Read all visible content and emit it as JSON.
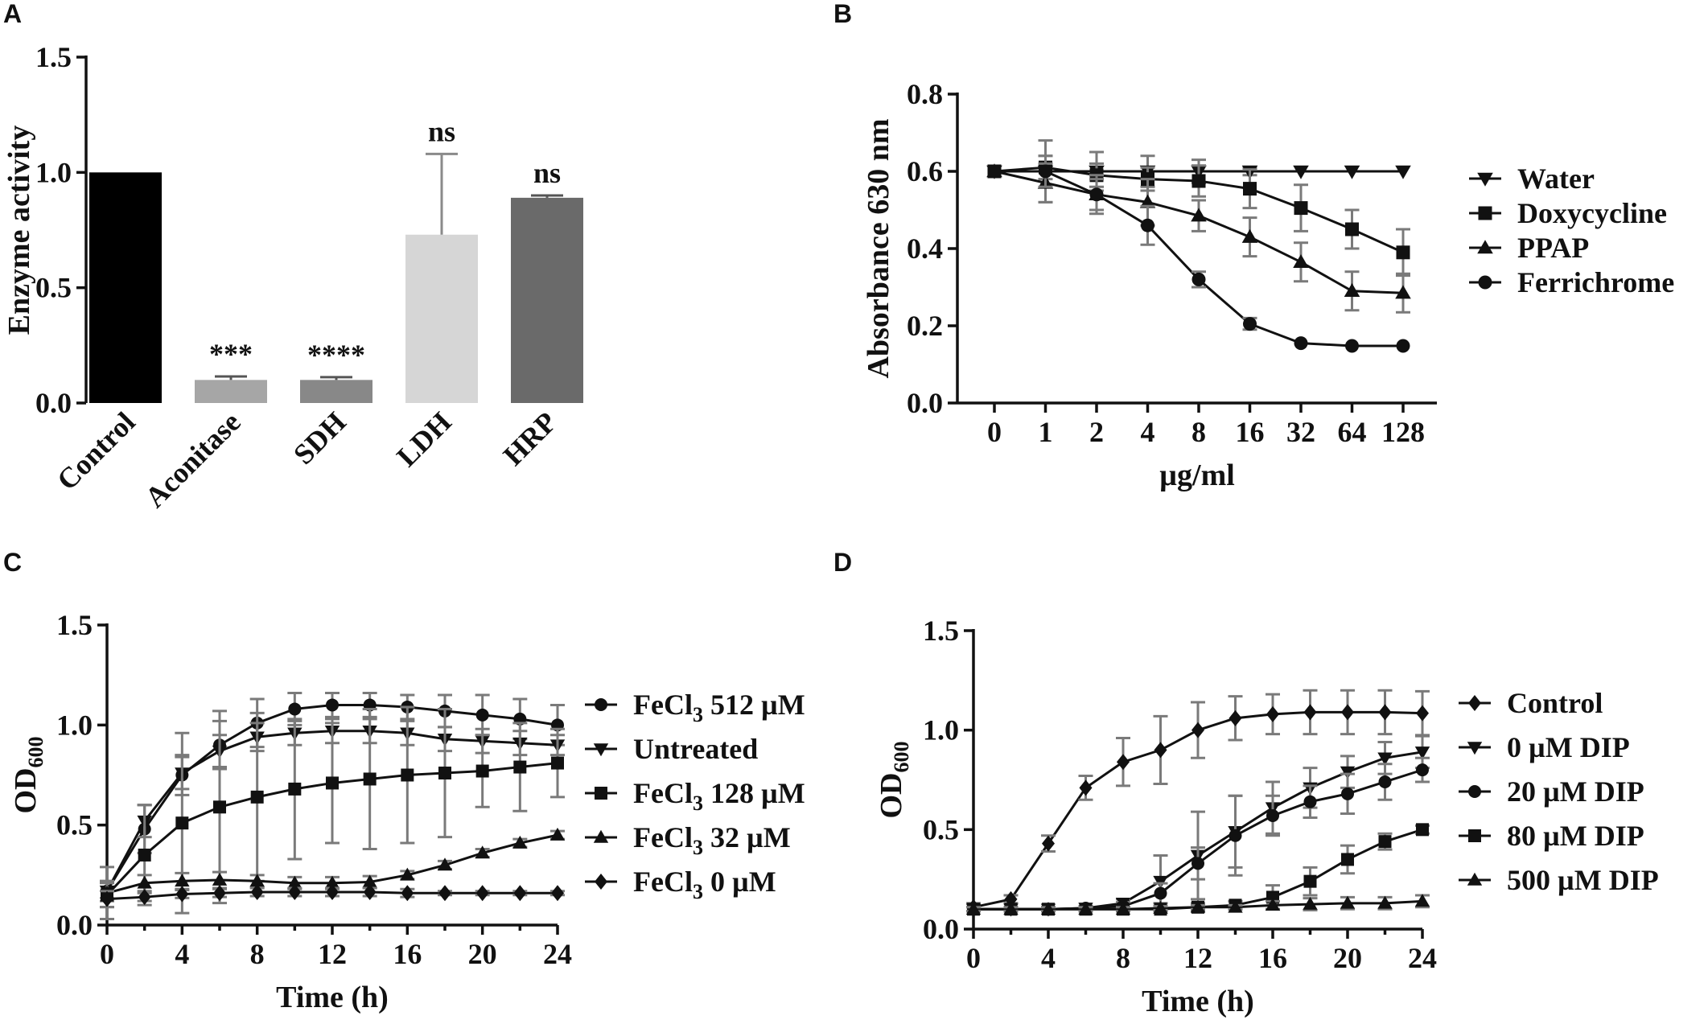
{
  "chart_data": [
    {
      "panel": "A",
      "type": "bar",
      "ylabel": "Enzyme activity",
      "ylim": [
        0,
        1.5
      ],
      "yticks": [
        "0.0",
        "0.5",
        "1.0",
        "1.5"
      ],
      "categories": [
        "Control",
        "Aconitase",
        "SDH",
        "LDH",
        "HRP"
      ],
      "values": [
        1.0,
        0.1,
        0.1,
        0.73,
        0.89
      ],
      "errors": [
        0,
        0.015,
        0.012,
        0.35,
        0.01
      ],
      "colors": [
        "#000000",
        "#a6a6a6",
        "#888888",
        "#d6d6d6",
        "#6a6a6a"
      ],
      "significance": [
        "",
        "***",
        "****",
        "ns",
        "ns"
      ]
    },
    {
      "panel": "B",
      "type": "line",
      "xlabel": "µg/ml",
      "ylabel": "Absorbance 630 nm",
      "ylim": [
        0,
        0.8
      ],
      "yticks": [
        "0.0",
        "0.2",
        "0.4",
        "0.6",
        "0.8"
      ],
      "categories": [
        "0",
        "1",
        "2",
        "4",
        "8",
        "16",
        "32",
        "64",
        "128"
      ],
      "series": [
        {
          "name": "Water",
          "marker": "triangle-down",
          "values": [
            0.6,
            0.6,
            0.6,
            0.6,
            0.6,
            0.6,
            0.6,
            0.6,
            0.6
          ],
          "errors": [
            0,
            0.08,
            0.05,
            0.04,
            0.03,
            0.01,
            0,
            0,
            0
          ]
        },
        {
          "name": "Doxycycline",
          "marker": "square",
          "values": [
            0.6,
            0.61,
            0.59,
            0.58,
            0.575,
            0.555,
            0.505,
            0.45,
            0.39
          ],
          "errors": [
            0,
            0.03,
            0.03,
            0.03,
            0.04,
            0.05,
            0.06,
            0.05,
            0.06
          ]
        },
        {
          "name": "PPAP",
          "marker": "triangle-up",
          "values": [
            0.6,
            0.57,
            0.54,
            0.52,
            0.485,
            0.43,
            0.365,
            0.29,
            0.285
          ],
          "errors": [
            0,
            0.05,
            0.05,
            0.06,
            0.04,
            0.05,
            0.05,
            0.05,
            0.05
          ]
        },
        {
          "name": "Ferrichrome",
          "marker": "circle",
          "values": [
            0.6,
            0.6,
            0.54,
            0.46,
            0.32,
            0.205,
            0.155,
            0.148,
            0.148
          ],
          "errors": [
            0,
            0.04,
            0.04,
            0.05,
            0.02,
            0.015,
            0,
            0,
            0
          ]
        }
      ]
    },
    {
      "panel": "C",
      "type": "line",
      "xlabel": "Time (h)",
      "ylabel_base": "OD",
      "ylabel_sub": "600",
      "xlim": [
        0,
        24
      ],
      "ylim": [
        0,
        1.5
      ],
      "xticks": [
        "0",
        "4",
        "8",
        "12",
        "16",
        "20",
        "24"
      ],
      "yticks": [
        "0.0",
        "0.5",
        "1.0",
        "1.5"
      ],
      "x": [
        0,
        2,
        4,
        6,
        8,
        10,
        12,
        14,
        16,
        18,
        20,
        22,
        24
      ],
      "series": [
        {
          "name_base": "FeCl",
          "name_sub": "3",
          "name_rest": " 512 µM",
          "marker": "circle",
          "values": [
            0.17,
            0.48,
            0.75,
            0.9,
            1.01,
            1.08,
            1.1,
            1.1,
            1.09,
            1.07,
            1.05,
            1.03,
            1.0
          ],
          "errors": [
            0.05,
            0.12,
            0.1,
            0.12,
            0.12,
            0.08,
            0.06,
            0.06,
            0.06,
            0.08,
            0.1,
            0.1,
            0.1
          ]
        },
        {
          "name": "Untreated",
          "marker": "triangle-down",
          "values": [
            0.17,
            0.52,
            0.76,
            0.87,
            0.94,
            0.96,
            0.97,
            0.97,
            0.96,
            0.93,
            0.92,
            0.91,
            0.9
          ],
          "errors": [
            0.05,
            0.08,
            0.08,
            0.08,
            0.07,
            0.06,
            0.06,
            0.06,
            0.06,
            0.06,
            0.06,
            0.06,
            0.05
          ]
        },
        {
          "name_base": "FeCl",
          "name_sub": "3",
          "name_rest": " 128 µM",
          "marker": "square",
          "values": [
            0.15,
            0.35,
            0.51,
            0.59,
            0.64,
            0.68,
            0.71,
            0.73,
            0.75,
            0.76,
            0.77,
            0.79,
            0.81
          ],
          "errors": [
            0.06,
            0.25,
            0.45,
            0.48,
            0.42,
            0.35,
            0.3,
            0.35,
            0.34,
            0.32,
            0.18,
            0.22,
            0.17
          ]
        },
        {
          "name_base": "FeCl",
          "name_sub": "3",
          "name_rest": " 32 µM",
          "marker": "triangle-up",
          "values": [
            0.16,
            0.21,
            0.22,
            0.225,
            0.22,
            0.21,
            0.21,
            0.215,
            0.25,
            0.3,
            0.36,
            0.41,
            0.45
          ],
          "errors": [
            0.13,
            0.04,
            0.04,
            0.04,
            0.03,
            0.03,
            0.03,
            0.03,
            0.02,
            0.02,
            0.02,
            0.02,
            0.02
          ]
        },
        {
          "name_base": "FeCl",
          "name_sub": "3",
          "name_rest": " 0 µM",
          "marker": "diamond",
          "values": [
            0.13,
            0.14,
            0.155,
            0.16,
            0.165,
            0.165,
            0.165,
            0.165,
            0.16,
            0.16,
            0.16,
            0.16,
            0.16
          ],
          "errors": [
            0.04,
            0.02,
            0.02,
            0.02,
            0.02,
            0.02,
            0.02,
            0.02,
            0.02,
            0.01,
            0.01,
            0.01,
            0.01
          ]
        }
      ]
    },
    {
      "panel": "D",
      "type": "line",
      "xlabel": "Time (h)",
      "ylabel_base": "OD",
      "ylabel_sub": "600",
      "xlim": [
        0,
        24
      ],
      "ylim": [
        0,
        1.5
      ],
      "xticks": [
        "0",
        "4",
        "8",
        "12",
        "16",
        "20",
        "24"
      ],
      "yticks": [
        "0.0",
        "0.5",
        "1.0",
        "1.5"
      ],
      "x": [
        0,
        2,
        4,
        6,
        8,
        10,
        12,
        14,
        16,
        18,
        20,
        22,
        24
      ],
      "series": [
        {
          "name": "Control",
          "marker": "diamond",
          "values": [
            0.11,
            0.15,
            0.43,
            0.71,
            0.84,
            0.9,
            1.0,
            1.06,
            1.08,
            1.09,
            1.09,
            1.09,
            1.085
          ],
          "errors": [
            0.02,
            0.02,
            0.04,
            0.06,
            0.12,
            0.17,
            0.14,
            0.11,
            0.1,
            0.11,
            0.11,
            0.11,
            0.11
          ]
        },
        {
          "name": "0 µM DIP",
          "marker": "triangle-down",
          "values": [
            0.1,
            0.1,
            0.1,
            0.105,
            0.13,
            0.24,
            0.37,
            0.49,
            0.61,
            0.71,
            0.79,
            0.86,
            0.89
          ],
          "errors": [
            0.01,
            0.01,
            0.01,
            0.01,
            0.02,
            0.13,
            0.22,
            0.18,
            0.13,
            0.1,
            0.08,
            0.08,
            0.08
          ]
        },
        {
          "name": "20 µM DIP",
          "marker": "circle",
          "values": [
            0.1,
            0.1,
            0.1,
            0.105,
            0.115,
            0.18,
            0.33,
            0.47,
            0.57,
            0.64,
            0.68,
            0.74,
            0.8
          ],
          "errors": [
            0.01,
            0.01,
            0.01,
            0.01,
            0.02,
            0.05,
            0.08,
            0.2,
            0.1,
            0.08,
            0.1,
            0.09,
            0.06
          ]
        },
        {
          "name": "80 µM DIP",
          "marker": "square",
          "values": [
            0.1,
            0.1,
            0.1,
            0.1,
            0.1,
            0.1,
            0.11,
            0.12,
            0.16,
            0.24,
            0.35,
            0.44,
            0.5
          ],
          "errors": [
            0.01,
            0.01,
            0.01,
            0.01,
            0.01,
            0.01,
            0.02,
            0.02,
            0.06,
            0.07,
            0.07,
            0.04,
            0.02
          ]
        },
        {
          "name": "500 µM DIP",
          "marker": "triangle-up",
          "values": [
            0.1,
            0.1,
            0.1,
            0.1,
            0.1,
            0.105,
            0.11,
            0.11,
            0.12,
            0.125,
            0.13,
            0.13,
            0.14
          ],
          "errors": [
            0.01,
            0.01,
            0.01,
            0.01,
            0.01,
            0.01,
            0.01,
            0.01,
            0.02,
            0.03,
            0.03,
            0.03,
            0.03
          ]
        }
      ]
    }
  ]
}
